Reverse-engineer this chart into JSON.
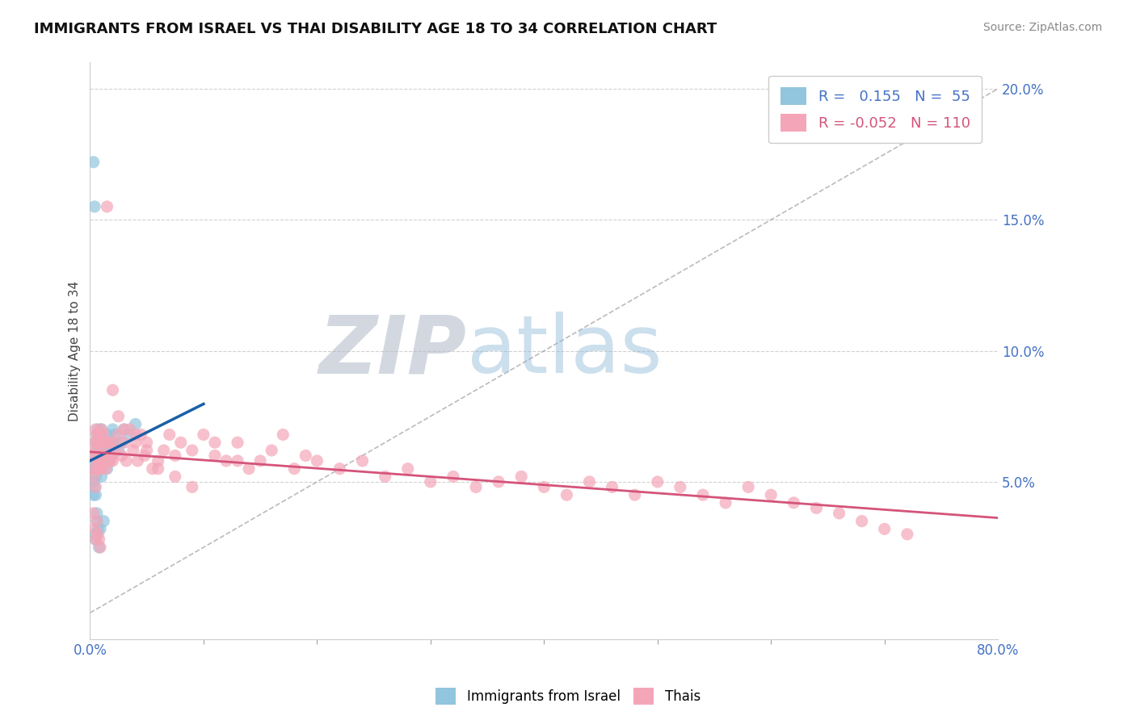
{
  "title": "IMMIGRANTS FROM ISRAEL VS THAI DISABILITY AGE 18 TO 34 CORRELATION CHART",
  "source": "Source: ZipAtlas.com",
  "ylabel": "Disability Age 18 to 34",
  "legend_label1": "Immigrants from Israel",
  "legend_label2": "Thais",
  "r1": 0.155,
  "n1": 55,
  "r2": -0.052,
  "n2": 110,
  "xlim": [
    0.0,
    0.8
  ],
  "ylim": [
    -0.01,
    0.21
  ],
  "yticks": [
    0.05,
    0.1,
    0.15,
    0.2
  ],
  "ytick_labels": [
    "5.0%",
    "10.0%",
    "15.0%",
    "20.0%"
  ],
  "xtick_labels": [
    "0.0%",
    "80.0%"
  ],
  "color_blue": "#92c5de",
  "color_pink": "#f4a6b8",
  "trend_blue": "#1a5fa8",
  "trend_pink": "#d4547a",
  "diag_color": "#aaaaaa",
  "background_color": "#ffffff",
  "blue_x": [
    0.003,
    0.003,
    0.003,
    0.004,
    0.004,
    0.004,
    0.005,
    0.005,
    0.005,
    0.005,
    0.006,
    0.006,
    0.006,
    0.007,
    0.007,
    0.007,
    0.008,
    0.008,
    0.008,
    0.009,
    0.009,
    0.01,
    0.01,
    0.01,
    0.01,
    0.011,
    0.011,
    0.012,
    0.012,
    0.013,
    0.014,
    0.015,
    0.015,
    0.016,
    0.017,
    0.018,
    0.019,
    0.02,
    0.02,
    0.022,
    0.025,
    0.028,
    0.03,
    0.035,
    0.04,
    0.003,
    0.004,
    0.005,
    0.006,
    0.005,
    0.007,
    0.008,
    0.006,
    0.009,
    0.012
  ],
  "blue_y": [
    0.055,
    0.05,
    0.045,
    0.06,
    0.055,
    0.048,
    0.065,
    0.058,
    0.052,
    0.045,
    0.068,
    0.062,
    0.055,
    0.07,
    0.063,
    0.057,
    0.065,
    0.06,
    0.055,
    0.068,
    0.062,
    0.07,
    0.065,
    0.058,
    0.052,
    0.067,
    0.06,
    0.065,
    0.058,
    0.063,
    0.06,
    0.068,
    0.055,
    0.062,
    0.058,
    0.065,
    0.06,
    0.065,
    0.07,
    0.068,
    0.062,
    0.065,
    0.07,
    0.068,
    0.072,
    0.172,
    0.155,
    0.03,
    0.035,
    0.028,
    0.032,
    0.025,
    0.038,
    0.032,
    0.035
  ],
  "pink_x": [
    0.003,
    0.003,
    0.004,
    0.004,
    0.005,
    0.005,
    0.005,
    0.006,
    0.006,
    0.007,
    0.007,
    0.008,
    0.008,
    0.009,
    0.009,
    0.01,
    0.01,
    0.01,
    0.011,
    0.011,
    0.012,
    0.012,
    0.013,
    0.014,
    0.015,
    0.015,
    0.016,
    0.017,
    0.018,
    0.019,
    0.02,
    0.02,
    0.022,
    0.025,
    0.028,
    0.03,
    0.032,
    0.035,
    0.038,
    0.04,
    0.042,
    0.045,
    0.048,
    0.05,
    0.055,
    0.06,
    0.065,
    0.07,
    0.075,
    0.08,
    0.09,
    0.1,
    0.11,
    0.12,
    0.13,
    0.14,
    0.15,
    0.16,
    0.17,
    0.18,
    0.19,
    0.2,
    0.22,
    0.24,
    0.26,
    0.28,
    0.3,
    0.32,
    0.34,
    0.36,
    0.38,
    0.4,
    0.42,
    0.44,
    0.46,
    0.48,
    0.5,
    0.52,
    0.54,
    0.56,
    0.58,
    0.6,
    0.62,
    0.64,
    0.66,
    0.68,
    0.7,
    0.72,
    0.003,
    0.004,
    0.005,
    0.006,
    0.007,
    0.008,
    0.009,
    0.015,
    0.02,
    0.025,
    0.03,
    0.04,
    0.05,
    0.06,
    0.075,
    0.09,
    0.11,
    0.13
  ],
  "pink_y": [
    0.06,
    0.052,
    0.065,
    0.055,
    0.07,
    0.062,
    0.048,
    0.068,
    0.058,
    0.065,
    0.055,
    0.068,
    0.058,
    0.065,
    0.055,
    0.07,
    0.062,
    0.055,
    0.065,
    0.058,
    0.068,
    0.058,
    0.06,
    0.055,
    0.065,
    0.058,
    0.06,
    0.065,
    0.058,
    0.06,
    0.065,
    0.058,
    0.062,
    0.068,
    0.06,
    0.065,
    0.058,
    0.07,
    0.062,
    0.065,
    0.058,
    0.068,
    0.06,
    0.065,
    0.055,
    0.058,
    0.062,
    0.068,
    0.06,
    0.065,
    0.062,
    0.068,
    0.06,
    0.058,
    0.065,
    0.055,
    0.058,
    0.062,
    0.068,
    0.055,
    0.06,
    0.058,
    0.055,
    0.058,
    0.052,
    0.055,
    0.05,
    0.052,
    0.048,
    0.05,
    0.052,
    0.048,
    0.045,
    0.05,
    0.048,
    0.045,
    0.05,
    0.048,
    0.045,
    0.042,
    0.048,
    0.045,
    0.042,
    0.04,
    0.038,
    0.035,
    0.032,
    0.03,
    0.038,
    0.032,
    0.028,
    0.035,
    0.03,
    0.028,
    0.025,
    0.155,
    0.085,
    0.075,
    0.07,
    0.068,
    0.062,
    0.055,
    0.052,
    0.048,
    0.065,
    0.058
  ]
}
